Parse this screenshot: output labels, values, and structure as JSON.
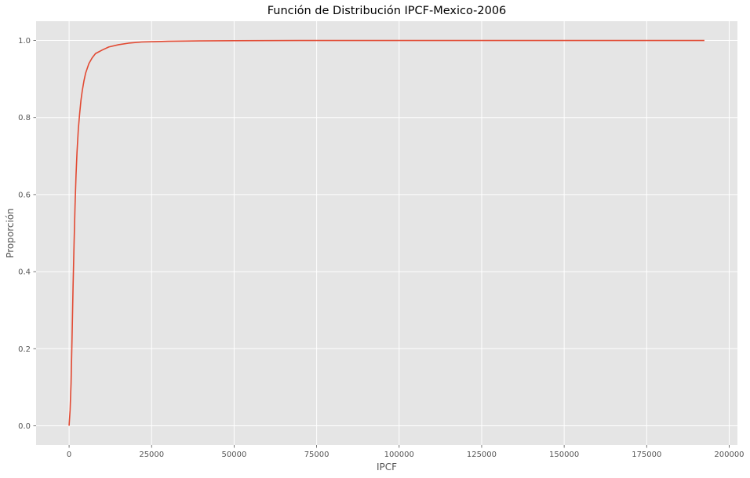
{
  "chart_data": {
    "type": "line",
    "title": "Función de Distribución IPCF-Mexico-2006",
    "xlabel": "IPCF",
    "ylabel": "Proporción",
    "xlim": [
      -10000,
      202500
    ],
    "ylim": [
      -0.05,
      1.05
    ],
    "grid": true,
    "x_ticks": [
      0,
      25000,
      50000,
      75000,
      100000,
      125000,
      150000,
      175000,
      200000
    ],
    "x_tick_labels": [
      "0",
      "25000",
      "50000",
      "75000",
      "100000",
      "125000",
      "150000",
      "175000",
      "200000"
    ],
    "y_ticks": [
      0.0,
      0.2,
      0.4,
      0.6,
      0.8,
      1.0
    ],
    "y_tick_labels": [
      "0.0",
      "0.2",
      "0.4",
      "0.6",
      "0.8",
      "1.0"
    ],
    "series": [
      {
        "color": "#E24A33",
        "x": [
          0,
          300,
          600,
          900,
          1200,
          1500,
          1800,
          2100,
          2400,
          2800,
          3200,
          3600,
          4000,
          4500,
          5000,
          6000,
          7000,
          8000,
          10000,
          12000,
          15000,
          18000,
          22000,
          26000,
          30000,
          35000,
          40000,
          50000,
          60000,
          80000,
          100000,
          150000,
          192500
        ],
        "y": [
          0.0,
          0.04,
          0.11,
          0.23,
          0.36,
          0.47,
          0.57,
          0.65,
          0.71,
          0.77,
          0.81,
          0.845,
          0.87,
          0.895,
          0.915,
          0.94,
          0.955,
          0.966,
          0.975,
          0.983,
          0.989,
          0.993,
          0.996,
          0.997,
          0.998,
          0.9985,
          0.999,
          0.9995,
          0.9998,
          1.0,
          1.0,
          1.0,
          1.0
        ]
      }
    ]
  }
}
